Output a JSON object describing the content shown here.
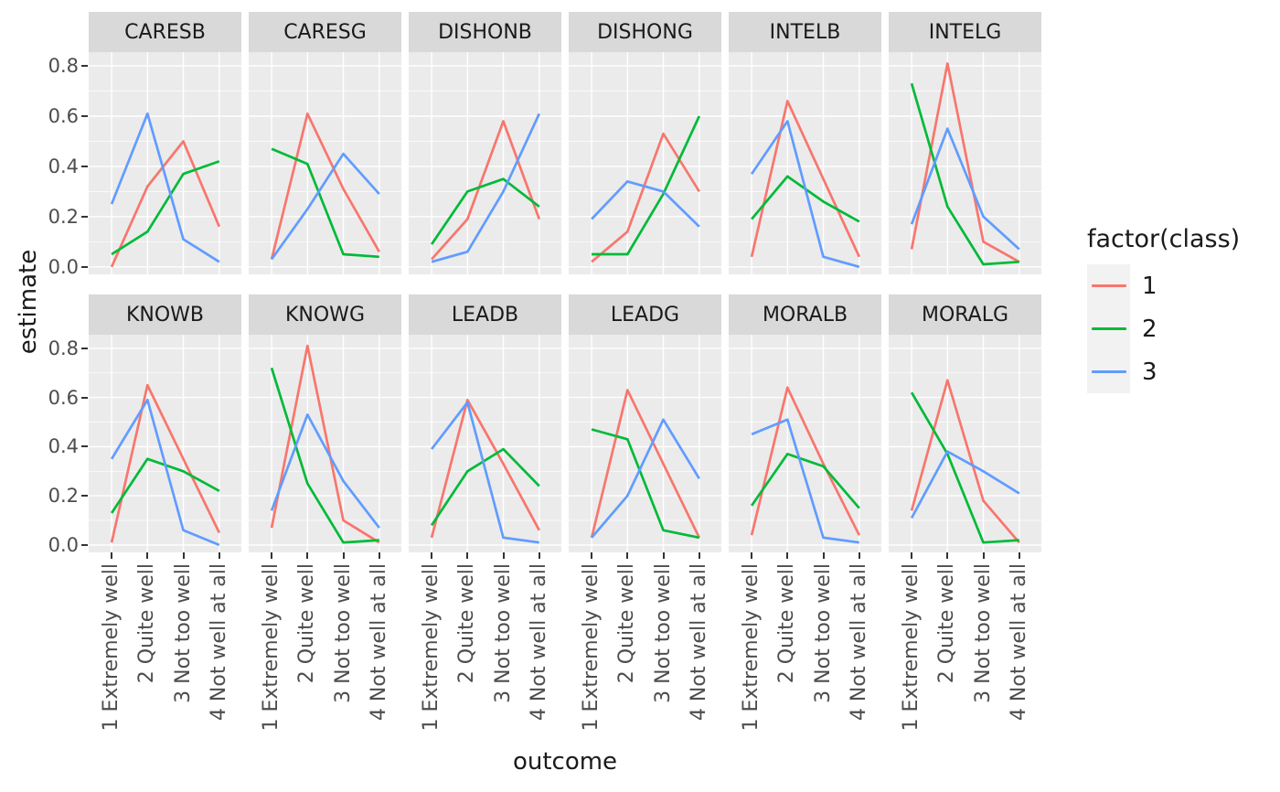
{
  "chart_data": {
    "type": "line",
    "title": "",
    "xlabel": "outcome",
    "ylabel": "estimate",
    "categories": [
      "1 Extremely well",
      "2 Quite well",
      "3 Not too well",
      "4 Not well at all"
    ],
    "yticks": [
      "0.0",
      "0.2",
      "0.4",
      "0.6",
      "0.8"
    ],
    "ylim": [
      0,
      0.8
    ],
    "grid": true,
    "legend": {
      "title": "factor(class)",
      "position": "right",
      "entries": [
        {
          "label": "1",
          "color": "#F8766D"
        },
        {
          "label": "2",
          "color": "#00BA38"
        },
        {
          "label": "3",
          "color": "#619CFF"
        }
      ]
    },
    "facets": [
      {
        "title": "CARESB",
        "series": [
          {
            "name": "1",
            "values": [
              0.0,
              0.32,
              0.5,
              0.16
            ]
          },
          {
            "name": "2",
            "values": [
              0.05,
              0.14,
              0.37,
              0.42
            ]
          },
          {
            "name": "3",
            "values": [
              0.25,
              0.61,
              0.11,
              0.02
            ]
          }
        ]
      },
      {
        "title": "CARESG",
        "series": [
          {
            "name": "1",
            "values": [
              0.03,
              0.61,
              0.31,
              0.06
            ]
          },
          {
            "name": "2",
            "values": [
              0.47,
              0.41,
              0.05,
              0.04
            ]
          },
          {
            "name": "3",
            "values": [
              0.03,
              0.23,
              0.45,
              0.29
            ]
          }
        ]
      },
      {
        "title": "DISHONB",
        "series": [
          {
            "name": "1",
            "values": [
              0.03,
              0.19,
              0.58,
              0.19
            ]
          },
          {
            "name": "2",
            "values": [
              0.09,
              0.3,
              0.35,
              0.24
            ]
          },
          {
            "name": "3",
            "values": [
              0.02,
              0.06,
              0.3,
              0.61
            ]
          }
        ]
      },
      {
        "title": "DISHONG",
        "series": [
          {
            "name": "1",
            "values": [
              0.02,
              0.14,
              0.53,
              0.3
            ]
          },
          {
            "name": "2",
            "values": [
              0.05,
              0.05,
              0.29,
              0.6
            ]
          },
          {
            "name": "3",
            "values": [
              0.19,
              0.34,
              0.3,
              0.16
            ]
          }
        ]
      },
      {
        "title": "INTELB",
        "series": [
          {
            "name": "1",
            "values": [
              0.04,
              0.66,
              0.35,
              0.04
            ]
          },
          {
            "name": "2",
            "values": [
              0.19,
              0.36,
              0.26,
              0.18
            ]
          },
          {
            "name": "3",
            "values": [
              0.37,
              0.58,
              0.04,
              0.0
            ]
          }
        ]
      },
      {
        "title": "INTELG",
        "series": [
          {
            "name": "1",
            "values": [
              0.07,
              0.81,
              0.1,
              0.02
            ]
          },
          {
            "name": "2",
            "values": [
              0.73,
              0.24,
              0.01,
              0.02
            ]
          },
          {
            "name": "3",
            "values": [
              0.17,
              0.55,
              0.2,
              0.07
            ]
          }
        ]
      },
      {
        "title": "KNOWB",
        "series": [
          {
            "name": "1",
            "values": [
              0.01,
              0.65,
              0.35,
              0.05
            ]
          },
          {
            "name": "2",
            "values": [
              0.13,
              0.35,
              0.3,
              0.22
            ]
          },
          {
            "name": "3",
            "values": [
              0.35,
              0.59,
              0.06,
              0.0
            ]
          }
        ]
      },
      {
        "title": "KNOWG",
        "series": [
          {
            "name": "1",
            "values": [
              0.07,
              0.81,
              0.1,
              0.01
            ]
          },
          {
            "name": "2",
            "values": [
              0.72,
              0.25,
              0.01,
              0.02
            ]
          },
          {
            "name": "3",
            "values": [
              0.14,
              0.53,
              0.26,
              0.07
            ]
          }
        ]
      },
      {
        "title": "LEADB",
        "series": [
          {
            "name": "1",
            "values": [
              0.03,
              0.59,
              0.33,
              0.06
            ]
          },
          {
            "name": "2",
            "values": [
              0.08,
              0.3,
              0.39,
              0.24
            ]
          },
          {
            "name": "3",
            "values": [
              0.39,
              0.58,
              0.03,
              0.01
            ]
          }
        ]
      },
      {
        "title": "LEADG",
        "series": [
          {
            "name": "1",
            "values": [
              0.03,
              0.63,
              0.33,
              0.03
            ]
          },
          {
            "name": "2",
            "values": [
              0.47,
              0.43,
              0.06,
              0.03
            ]
          },
          {
            "name": "3",
            "values": [
              0.03,
              0.2,
              0.51,
              0.27
            ]
          }
        ]
      },
      {
        "title": "MORALB",
        "series": [
          {
            "name": "1",
            "values": [
              0.04,
              0.64,
              0.33,
              0.04
            ]
          },
          {
            "name": "2",
            "values": [
              0.16,
              0.37,
              0.32,
              0.15
            ]
          },
          {
            "name": "3",
            "values": [
              0.45,
              0.51,
              0.03,
              0.01
            ]
          }
        ]
      },
      {
        "title": "MORALG",
        "series": [
          {
            "name": "1",
            "values": [
              0.14,
              0.67,
              0.18,
              0.01
            ]
          },
          {
            "name": "2",
            "values": [
              0.62,
              0.37,
              0.01,
              0.02
            ]
          },
          {
            "name": "3",
            "values": [
              0.11,
              0.38,
              0.3,
              0.21
            ]
          }
        ]
      }
    ],
    "panel_background": "#EBEBEB",
    "strip_background": "#D9D9D9",
    "gridline_color": "#FFFFFF"
  }
}
